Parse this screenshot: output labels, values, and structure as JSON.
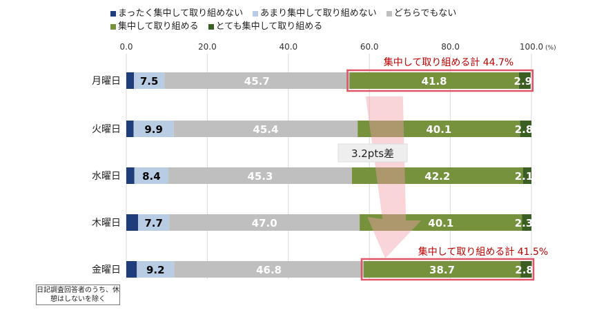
{
  "chart_data": {
    "type": "bar",
    "orientation": "horizontal-stacked",
    "categories": [
      "月曜日",
      "火曜日",
      "水曜日",
      "木曜日",
      "金曜日"
    ],
    "series": [
      {
        "name": "まったく集中して取り組めない",
        "color": "#1f3d7a",
        "values": [
          1.9,
          1.8,
          2.0,
          2.9,
          2.6
        ],
        "show_labels": false
      },
      {
        "name": "あまり集中して取り組めない",
        "color": "#b8cce4",
        "values": [
          7.5,
          9.9,
          8.4,
          7.7,
          9.2
        ],
        "show_labels": true,
        "label_color": "#000000"
      },
      {
        "name": "どちらでもない",
        "color": "#bfbfbf",
        "values": [
          45.7,
          45.4,
          45.3,
          47.0,
          46.8
        ],
        "show_labels": true,
        "label_color": "#ffffff"
      },
      {
        "name": "集中して取り組める",
        "color": "#76923c",
        "values": [
          41.8,
          40.1,
          42.2,
          40.1,
          38.7
        ],
        "show_labels": true,
        "label_color": "#ffffff"
      },
      {
        "name": "とても集中して取り組める",
        "color": "#3b5e23",
        "values": [
          2.9,
          2.8,
          2.1,
          2.3,
          2.8
        ],
        "show_labels": true,
        "label_color": "#ffffff"
      }
    ],
    "axis": {
      "min": 0,
      "max": 100,
      "ticks": [
        "0.0",
        "20.0",
        "40.0",
        "60.0",
        "80.0",
        "100.0"
      ],
      "unit": "(%)",
      "position": "top"
    },
    "annotations": {
      "monday": "集中して取り組める計 44.7%",
      "friday": "集中して取り組める計 41.5%",
      "difference": "3.2pts差"
    },
    "grid": true,
    "legend_position": "top"
  },
  "footnote": "日記調査回答者のうち、休憩はしないを除く"
}
